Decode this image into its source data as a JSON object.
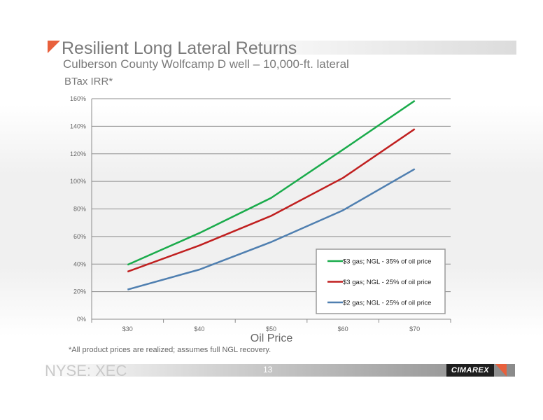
{
  "slide": {
    "title": "Resilient Long Lateral Returns",
    "subtitle": "Culberson County Wolfcamp D well – 10,000-ft. lateral",
    "footnote": "*All product prices are realized; assumes full NGL recovery.",
    "ticker": "NYSE: XEC",
    "page_number": "13",
    "logo_text": "CIMAREX",
    "accent_color": "#e8603c"
  },
  "chart_data": {
    "type": "line",
    "title": "",
    "ylabel": "BTax IRR*",
    "xlabel": "Oil Price",
    "categories": [
      "$30",
      "$40",
      "$50",
      "$60",
      "$70"
    ],
    "ylim": [
      0,
      160
    ],
    "yticks": [
      "0%",
      "20%",
      "40%",
      "60%",
      "80%",
      "100%",
      "120%",
      "140%",
      "160%"
    ],
    "grid": true,
    "legend_position": "bottom-right",
    "series": [
      {
        "name": "$3 gas; NGL - 35% of oil price",
        "color": "#1aab4b",
        "values": [
          39.5,
          62.5,
          88,
          123,
          158.5
        ]
      },
      {
        "name": "$3 gas; NGL - 25% of oil price",
        "color": "#c01f1f",
        "values": [
          34.5,
          53.5,
          75,
          102.5,
          138
        ]
      },
      {
        "name": "$2 gas; NGL - 25% of oil price",
        "color": "#4f7fb0",
        "values": [
          21.5,
          36,
          56,
          79,
          109
        ]
      }
    ]
  }
}
